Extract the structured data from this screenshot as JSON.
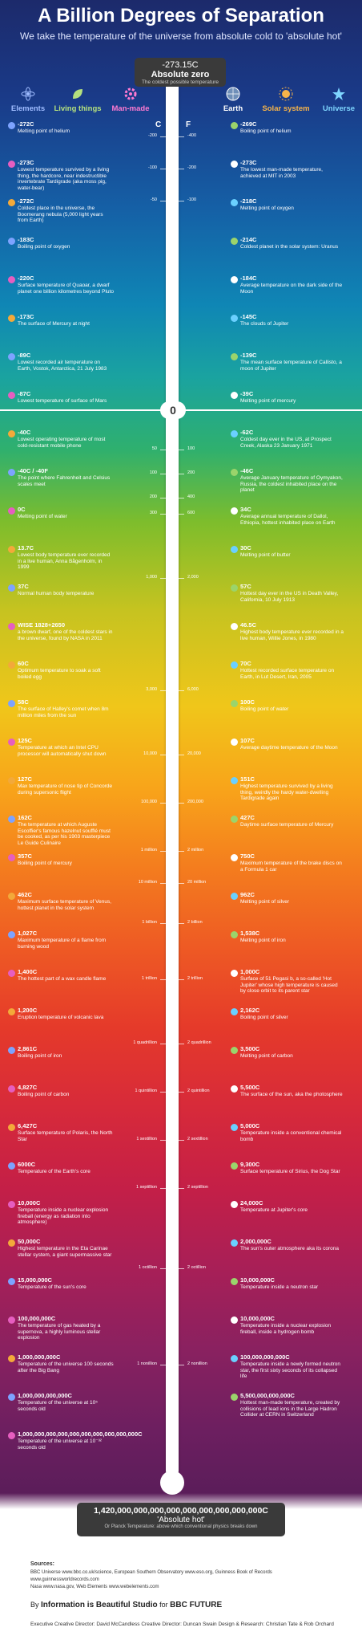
{
  "title": "A Billion Degrees of Separation",
  "subtitle": "We take the temperature of the universe from absolute cold to 'absolute hot'",
  "categories": [
    {
      "label": "Elements",
      "color": "#7da3ff"
    },
    {
      "label": "Living things",
      "color": "#9bd46b"
    },
    {
      "label": "Man-made",
      "color": "#e65ec0"
    },
    {
      "label": "Earth",
      "color": "#ffffff"
    },
    {
      "label": "Solar system",
      "color": "#f3a93a"
    },
    {
      "label": "Universe",
      "color": "#6ad0ff"
    }
  ],
  "scale": {
    "left_unit": "C",
    "right_unit": "F",
    "zero": "0"
  },
  "top_box": {
    "value": "-273.15C",
    "label": "Absolute zero",
    "note": "The coldest possible temperature"
  },
  "bottom_box": {
    "value": "1,420,000,000,000,000,000,000,000,000,000C",
    "label": "'Absolute hot'",
    "note": "Or Planck Temperature: above which conventional physics breaks down"
  },
  "ticks": [
    {
      "c": "-200",
      "f": "-400"
    },
    {
      "c": "-100",
      "f": "-200"
    },
    {
      "c": "-50",
      "f": "-100"
    },
    {
      "c": "50",
      "f": "100"
    },
    {
      "c": "100",
      "f": "200"
    },
    {
      "c": "200",
      "f": "400"
    },
    {
      "c": "300",
      "f": "600"
    },
    {
      "c": "1,000",
      "f": "2,000"
    },
    {
      "c": "3,000",
      "f": "6,000"
    },
    {
      "c": "10,000",
      "f": "20,000"
    },
    {
      "c": "100,000",
      "f": "200,000"
    },
    {
      "c": "1 million",
      "f": "2 million"
    },
    {
      "c": "10 million",
      "f": "20 million"
    },
    {
      "c": "1 billion",
      "f": "2 billion"
    },
    {
      "c": "1 trillion",
      "f": "2 trillion"
    },
    {
      "c": "1 quadrillion",
      "f": "2 quadrillion"
    },
    {
      "c": "1 quintillion",
      "f": "2 quintillion"
    },
    {
      "c": "1 sextillion",
      "f": "2 sextillion"
    },
    {
      "c": "1 septillion",
      "f": "2 septillion"
    },
    {
      "c": "1 octillion",
      "f": "2 octillion"
    },
    {
      "c": "1 nonillion",
      "f": "2 nonillion"
    }
  ],
  "annotations": [
    {
      "v": "-272C",
      "t": "Melting point of helium"
    },
    {
      "v": "-269C",
      "t": "Boiling point of helium"
    },
    {
      "v": "-273C",
      "t": "Lowest temperature survived by a living thing, the hardcore, near indestructible invertebrate Tardigrade (aka moss pig, water-bear)"
    },
    {
      "v": "-273C",
      "t": "The lowest man-made temperature, achieved at MIT in 2003"
    },
    {
      "v": "-272C",
      "t": "Coldest place in the universe, the Boomerang nebula (5,000 light years from Earth)"
    },
    {
      "v": "-218C",
      "t": "Melting point of oxygen"
    },
    {
      "v": "-183C",
      "t": "Boiling point of oxygen"
    },
    {
      "v": "-214C",
      "t": "Coldest planet in the solar system: Uranus"
    },
    {
      "v": "-220C",
      "t": "Surface temperature of Quaoar, a dwarf planet one billion kilometres beyond Pluto"
    },
    {
      "v": "-184C",
      "t": "Average temperature on the dark side of the Moon"
    },
    {
      "v": "-173C",
      "t": "The surface of Mercury at night"
    },
    {
      "v": "-145C",
      "t": "The clouds of Jupiter"
    },
    {
      "v": "-89C",
      "t": "Lowest recorded air temperature on Earth, Vostok, Antarctica, 21 July 1983"
    },
    {
      "v": "-139C",
      "t": "The mean surface temperature of Callisto, a moon of Jupiter"
    },
    {
      "v": "-87C",
      "t": "Lowest temperature of surface of Mars"
    },
    {
      "v": "-39C",
      "t": "Melting point of mercury"
    },
    {
      "v": "-40C",
      "t": "Lowest operating temperature of most cold-resistant mobile phone"
    },
    {
      "v": "-62C",
      "t": "Coldest day ever in the US, at Prospect Creek, Alaska 23 January 1971"
    },
    {
      "v": "-40C / -40F",
      "t": "The point where Fahrenheit and Celsius scales meet"
    },
    {
      "v": "-46C",
      "t": "Average January temperature of Oymyakon, Russia, the coldest inhabited place on the planet"
    },
    {
      "v": "0C",
      "t": "Melting point of water"
    },
    {
      "v": "34C",
      "t": "Average annual temperature of Dallol, Ethiopia, hottest inhabited place on Earth"
    },
    {
      "v": "13.7C",
      "t": "Lowest body temperature ever recorded in a live human, Anna Bågenholm, in 1999"
    },
    {
      "v": "30C",
      "t": "Melting point of butter"
    },
    {
      "v": "37C",
      "t": "Normal human body temperature"
    },
    {
      "v": "57C",
      "t": "Hottest day ever in the US in Death Valley, California, 10 July 1913"
    },
    {
      "v": "WISE 1828+2650",
      "t": "a brown dwarf, one of the coldest stars in the universe, found by NASA in 2011"
    },
    {
      "v": "46.5C",
      "t": "Highest body temperature ever recorded in a live human, Willie Jones, in 1980"
    },
    {
      "v": "60C",
      "t": "Optimum temperature to soak a soft boiled egg"
    },
    {
      "v": "70C",
      "t": "Hottest recorded surface temperature on Earth, in Lut Desert, Iran, 2005"
    },
    {
      "v": "58C",
      "t": "The surface of Halley's comet when 8m million miles from the sun"
    },
    {
      "v": "100C",
      "t": "Boiling point of water"
    },
    {
      "v": "125C",
      "t": "Temperature at which an Intel CPU processor will automatically shut down"
    },
    {
      "v": "107C",
      "t": "Average daytime temperature of the Moon"
    },
    {
      "v": "127C",
      "t": "Max temperature of nose tip of Concorde during supersonic flight"
    },
    {
      "v": "151C",
      "t": "Highest temperature survived by a living thing, weirdly the hardy water-dwelling Tardigrade again"
    },
    {
      "v": "162C",
      "t": "The temperature at which Auguste Escoffier's famous hazelnut soufflé must be cooked, as per his 1903 masterpiece Le Guide Culinaire"
    },
    {
      "v": "427C",
      "t": "Daytime surface temperature of Mercury"
    },
    {
      "v": "357C",
      "t": "Boiling point of mercury"
    },
    {
      "v": "750C",
      "t": "Maximum temperature of the brake discs on a Formula 1 car"
    },
    {
      "v": "462C",
      "t": "Maximum surface temperature of Venus, hottest planet in the solar system"
    },
    {
      "v": "962C",
      "t": "Melting point of silver"
    },
    {
      "v": "1,027C",
      "t": "Maximum temperature of a flame from burning wood"
    },
    {
      "v": "1,538C",
      "t": "Melting point of iron"
    },
    {
      "v": "1,400C",
      "t": "The hottest part of a wax candle flame"
    },
    {
      "v": "1,000C",
      "t": "Surface of 51 Pegasi b, a so-called 'Hot Jupiter' whose high temperature is caused by close orbit to its parent star"
    },
    {
      "v": "1,200C",
      "t": "Eruption temperature of volcanic lava"
    },
    {
      "v": "2,162C",
      "t": "Boiling point of silver"
    },
    {
      "v": "2,861C",
      "t": "Boiling point of iron"
    },
    {
      "v": "3,500C",
      "t": "Melting point of carbon"
    },
    {
      "v": "4,827C",
      "t": "Boiling point of carbon"
    },
    {
      "v": "5,500C",
      "t": "The surface of the sun, aka the photosphere"
    },
    {
      "v": "6,427C",
      "t": "Surface temperature of Polaris, the North Star"
    },
    {
      "v": "5,000C",
      "t": "Temperature inside a conventional chemical bomb"
    },
    {
      "v": "6000C",
      "t": "Temperature of the Earth's core"
    },
    {
      "v": "9,300C",
      "t": "Surface temperature of Sirius, the Dog Star"
    },
    {
      "v": "10,000C",
      "t": "Temperature inside a nuclear explosion fireball (energy as radiation into atmosphere)"
    },
    {
      "v": "24,000C",
      "t": "Temperature at Jupiter's core"
    },
    {
      "v": "50,000C",
      "t": "Highest temperature in the Eta Carinae stellar system, a giant supermassive star"
    },
    {
      "v": "2,000,000C",
      "t": "The sun's outer atmosphere aka its corona"
    },
    {
      "v": "15,000,000C",
      "t": "Temperature of the sun's core"
    },
    {
      "v": "10,000,000C",
      "t": "Temperature inside a neutron star"
    },
    {
      "v": "100,000,000C",
      "t": "The temperature of gas heated by a supernova, a highly luminous stellar explosion"
    },
    {
      "v": "10,000,000C",
      "t": "Temperature inside a nuclear explosion fireball, inside a hydrogen bomb"
    },
    {
      "v": "1,000,000,000C",
      "t": "Temperature of the universe 100 seconds after the Big Bang"
    },
    {
      "v": "100,000,000,000C",
      "t": "Temperature inside a newly formed neutron star, the first sixty seconds of its collapsed life"
    },
    {
      "v": "1,000,000,000,000C",
      "t": "Temperature of the universe at 10⁵ seconds old"
    },
    {
      "v": "5,500,000,000,000C",
      "t": "Hottest man-made temperature, created by collisions of lead ions in the Large Hadron Collider at CERN in Switzerland"
    },
    {
      "v": "1,000,000,000,000,000,000,000,000,000,000C",
      "t": "Temperature of the universe at 10⁻³² seconds old"
    }
  ],
  "sources": {
    "heading": "Sources:",
    "line1": "BBC Universe www.bbc.co.uk/science, European Southern Observatory www.eso.org, Guinness Book of Records www.guinnessworldrecords.com",
    "line2": "Nasa www.nasa.gov, Web Elements www.webelements.com"
  },
  "byline": {
    "by": "By",
    "brand": "Information is Beautiful Studio",
    "for": "for",
    "partner": "BBC FUTURE"
  },
  "credits": "Executive Creative Director: David McCandless   Creative Director: Duncan Swain   Design & Research: Christian Tate & Rob Orchard"
}
